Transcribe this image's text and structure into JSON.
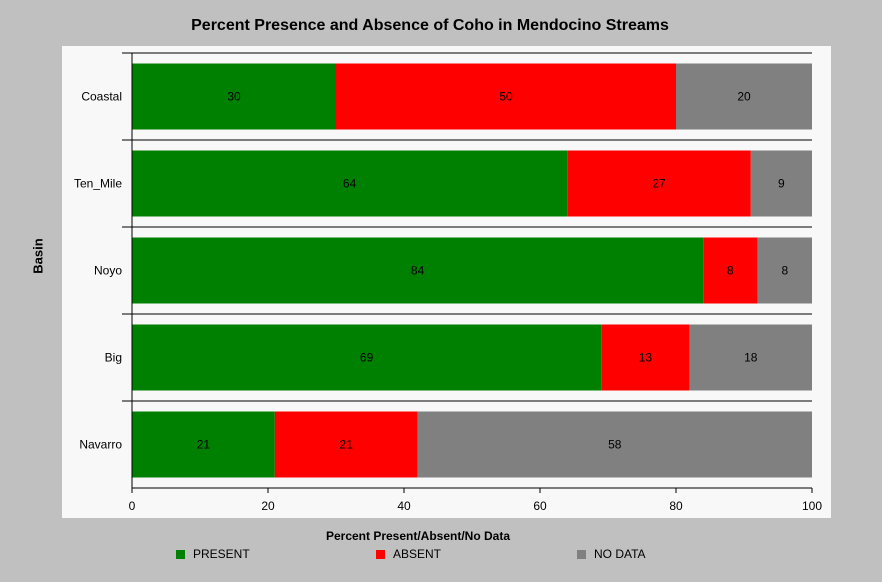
{
  "chart_data": {
    "type": "bar",
    "orientation": "horizontal",
    "stacked": true,
    "title": "Percent Presence and Absence of Coho in Mendocino Streams",
    "xlabel": "Percent Present/Absent/No Data",
    "ylabel": "Basin",
    "xlim": [
      0,
      100
    ],
    "xticks": [
      0,
      20,
      40,
      60,
      80,
      100
    ],
    "categories": [
      "Coastal",
      "Ten_Mile",
      "Noyo",
      "Big",
      "Navarro"
    ],
    "series": [
      {
        "name": "PRESENT",
        "color": "#008000",
        "values": [
          30,
          64,
          84,
          69,
          21
        ]
      },
      {
        "name": "ABSENT",
        "color": "#ff0000",
        "values": [
          50,
          27,
          8,
          13,
          21
        ]
      },
      {
        "name": "NO DATA",
        "color": "#808080",
        "values": [
          20,
          9,
          8,
          18,
          58
        ]
      }
    ],
    "legend_position": "bottom",
    "grid": false
  }
}
